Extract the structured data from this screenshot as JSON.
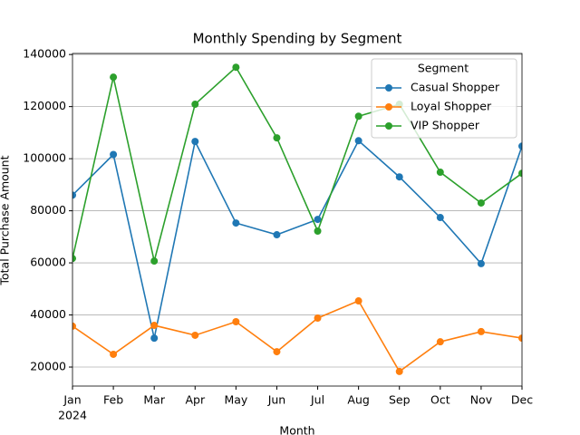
{
  "chart_data": {
    "type": "line",
    "title": "Monthly Spending by Segment",
    "x_label": "Month",
    "y_label": "Total Purchase Amount",
    "categories": [
      "Jan",
      "Feb",
      "Mar",
      "Apr",
      "May",
      "Jun",
      "Jul",
      "Aug",
      "Sep",
      "Oct",
      "Nov",
      "Dec"
    ],
    "x_year_label": "2024",
    "series": [
      {
        "name": "Casual Shopper",
        "color": "#1f77b4",
        "values": [
          86000,
          101600,
          31100,
          106600,
          75300,
          70800,
          76700,
          106900,
          93000,
          77400,
          59700,
          104800
        ]
      },
      {
        "name": "Loyal Shopper",
        "color": "#ff7f0e",
        "values": [
          35700,
          24900,
          36000,
          32200,
          37400,
          25900,
          38800,
          45400,
          18300,
          29700,
          33600,
          31100
        ]
      },
      {
        "name": "VIP Shopper",
        "color": "#2ca02c",
        "values": [
          61700,
          131300,
          60700,
          120900,
          135100,
          108000,
          72200,
          116300,
          120900,
          94800,
          83000,
          94400
        ]
      }
    ],
    "ylim": [
      12700,
      140400
    ],
    "yticks": [
      20000,
      40000,
      60000,
      80000,
      100000,
      120000,
      140000
    ],
    "grid": "y",
    "legend_title": "Segment",
    "legend_position": "upper-right"
  }
}
